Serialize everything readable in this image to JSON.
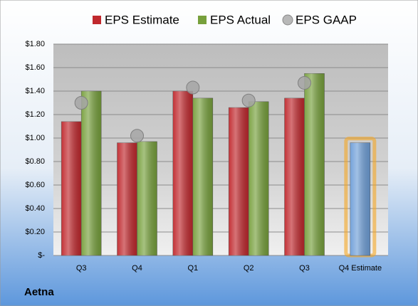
{
  "chart_data": {
    "type": "bar",
    "categories": [
      "Q3",
      "Q4",
      "Q1",
      "Q2",
      "Q3",
      "Q4 Estimate"
    ],
    "series": [
      {
        "name": "EPS Estimate",
        "color": "#c0282d",
        "values": [
          1.14,
          0.96,
          1.4,
          1.26,
          1.34,
          0.96
        ],
        "colors": [
          "#c0282d",
          "#c0282d",
          "#c0282d",
          "#c0282d",
          "#c0282d",
          "#6f9fd8"
        ]
      },
      {
        "name": "EPS Actual",
        "color": "#77a03c",
        "values": [
          1.4,
          0.97,
          1.34,
          1.31,
          1.55,
          null
        ]
      },
      {
        "name": "EPS GAAP",
        "color": "#a6a6a6",
        "marker": "circle",
        "values": [
          1.3,
          1.02,
          1.43,
          1.32,
          1.47,
          null
        ]
      }
    ],
    "ylim": [
      0,
      1.8
    ],
    "yticks": [
      {
        "value": 0,
        "label": "$-"
      },
      {
        "value": 0.2,
        "label": "$0.20"
      },
      {
        "value": 0.4,
        "label": "$0.40"
      },
      {
        "value": 0.6,
        "label": "$0.60"
      },
      {
        "value": 0.8,
        "label": "$0.80"
      },
      {
        "value": 1.0,
        "label": "$1.00"
      },
      {
        "value": 1.2,
        "label": "$1.20"
      },
      {
        "value": 1.4,
        "label": "$1.40"
      },
      {
        "value": 1.6,
        "label": "$1.60"
      },
      {
        "value": 1.8,
        "label": "$1.80"
      }
    ],
    "grid": true,
    "legend": "top",
    "footer": "Aetna"
  }
}
